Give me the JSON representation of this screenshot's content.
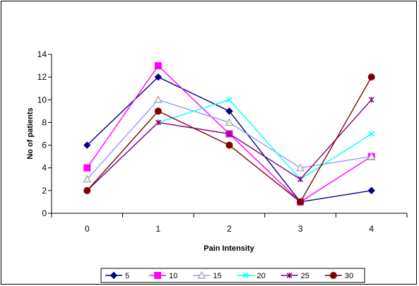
{
  "chart_data": {
    "type": "line",
    "title": "",
    "xlabel": "Pain Intensity",
    "ylabel": "No of patients",
    "categories": [
      "0",
      "1",
      "2",
      "3",
      "4"
    ],
    "ylim": [
      0,
      14
    ],
    "yticks": [
      0,
      2,
      4,
      6,
      8,
      10,
      12,
      14
    ],
    "grid": false,
    "legend": "bottom",
    "series": [
      {
        "name": "5",
        "values": [
          6,
          12,
          9,
          1,
          2
        ],
        "color": "#000080",
        "marker": "diamond"
      },
      {
        "name": "10",
        "values": [
          4,
          13,
          7,
          1,
          5
        ],
        "color": "#FF00FF",
        "marker": "square"
      },
      {
        "name": "15",
        "values": [
          3,
          10,
          8,
          4,
          5
        ],
        "color": "#9999FF",
        "marker": "triangle"
      },
      {
        "name": "20",
        "values": [
          2,
          8,
          10,
          3,
          7
        ],
        "color": "#00FFFF",
        "marker": "x"
      },
      {
        "name": "25",
        "values": [
          2,
          8,
          7,
          3,
          10
        ],
        "color": "#800080",
        "marker": "star"
      },
      {
        "name": "30",
        "values": [
          2,
          9,
          6,
          1,
          12
        ],
        "color": "#800000",
        "marker": "circle"
      }
    ]
  }
}
